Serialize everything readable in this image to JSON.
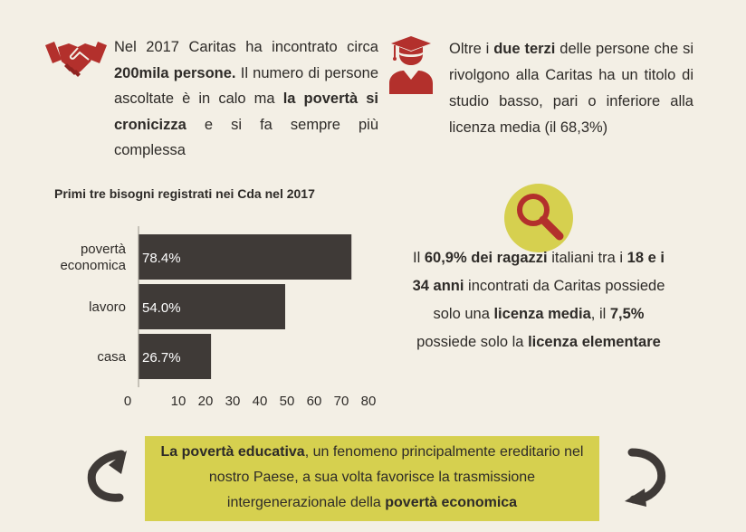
{
  "intro": {
    "icon": "handshake-icon",
    "seg1": "Nel 2017 Caritas ha incontrato circa ",
    "bold1": "200mila persone.",
    "seg2": " Il numero di persone ascoltate è in calo ma ",
    "bold2": "la povertà si cronicizza",
    "seg3": " e si fa sempre più complessa"
  },
  "education": {
    "icon": "graduate-icon",
    "seg1": "Oltre i ",
    "bold1": "due terzi",
    "seg2": " delle persone che si rivolgono alla Caritas ha un titolo di studio basso, pari o inferiore alla licenza media (il 68,3%)"
  },
  "youth": {
    "icon": "magnifier-icon",
    "seg1": "Il ",
    "bold1": "60,9% dei ragazzi",
    "seg2": " italiani tra i ",
    "bold2": "18 e i 34 anni",
    "seg3": " incontrati da Caritas possiede solo una ",
    "bold3": "licenza media",
    "seg4": ", il ",
    "bold4": "7,5%",
    "seg5": " possiede solo la ",
    "bold5": "licenza elementare"
  },
  "banner": {
    "bold1": "La povertà educativa",
    "seg1": ", un fenomeno principalmente ereditario nel nostro Paese, a sua volta favorisce la trasmissione intergenerazionale della ",
    "bold2": "povertà economica",
    "left_icon": "curved-arrow-left-icon",
    "right_icon": "curved-arrow-right-icon",
    "color": "#d6d04f"
  },
  "chart_data": {
    "type": "bar",
    "orientation": "horizontal",
    "title": "Primi tre bisogni registrati nei Cda nel 2017",
    "categories": [
      [
        "povertà",
        "economica"
      ],
      [
        "lavoro"
      ],
      [
        "casa"
      ]
    ],
    "values": [
      78.4,
      54.0,
      26.7
    ],
    "value_labels": [
      "78.4%",
      "54.0%",
      "26.7%"
    ],
    "xticks": [
      0,
      10,
      20,
      30,
      40,
      50,
      60,
      70,
      80
    ],
    "xlim": [
      0,
      85
    ],
    "xlabel": "",
    "ylabel": "",
    "grid": false,
    "bar_color": "#3f3a37",
    "label_color": "#ffffff"
  }
}
